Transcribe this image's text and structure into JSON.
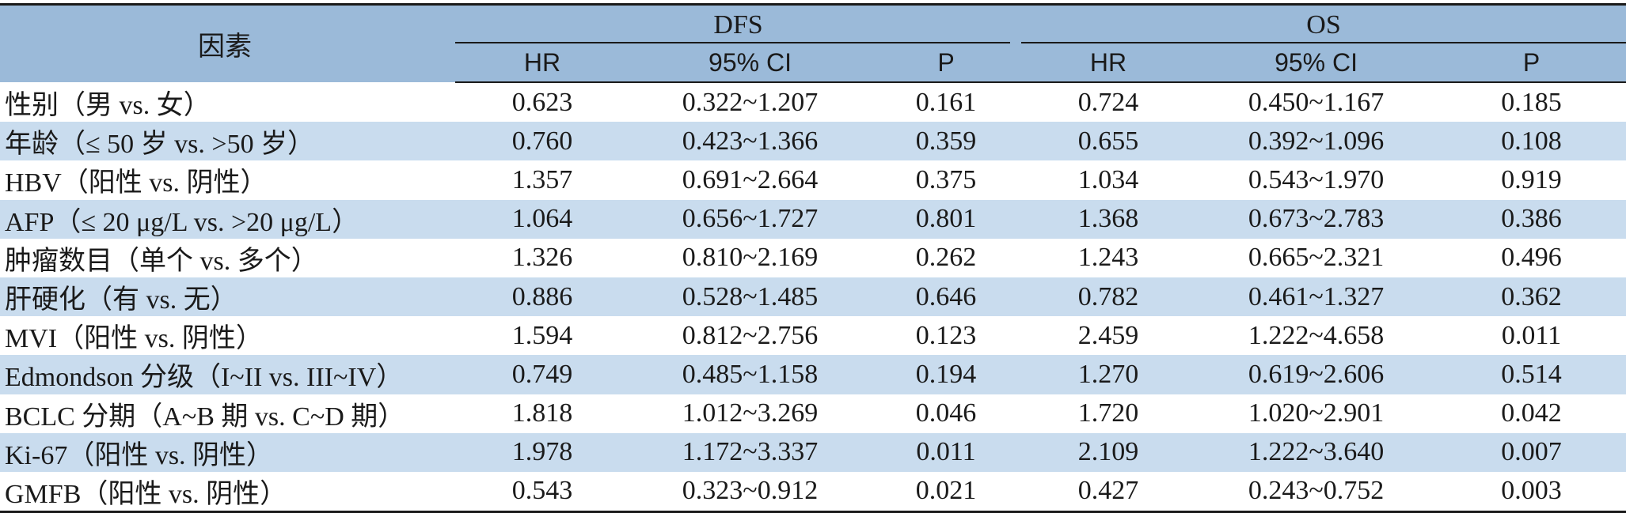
{
  "table": {
    "factor_header": "因素",
    "groups": [
      {
        "title": "DFS",
        "columns": [
          "HR",
          "95% CI",
          "P"
        ]
      },
      {
        "title": "OS",
        "columns": [
          "HR",
          "95% CI",
          "P"
        ]
      }
    ],
    "rows": [
      {
        "factor": "性别（男 vs. 女）",
        "dfs_hr": "0.623",
        "dfs_ci": "0.322~1.207",
        "dfs_p": "0.161",
        "os_hr": "0.724",
        "os_ci": "0.450~1.167",
        "os_p": "0.185"
      },
      {
        "factor": "年龄（≤ 50 岁 vs. >50 岁）",
        "dfs_hr": "0.760",
        "dfs_ci": "0.423~1.366",
        "dfs_p": "0.359",
        "os_hr": "0.655",
        "os_ci": "0.392~1.096",
        "os_p": "0.108"
      },
      {
        "factor": "HBV（阳性 vs. 阴性）",
        "dfs_hr": "1.357",
        "dfs_ci": "0.691~2.664",
        "dfs_p": "0.375",
        "os_hr": "1.034",
        "os_ci": "0.543~1.970",
        "os_p": "0.919"
      },
      {
        "factor": "AFP（≤ 20 μg/L vs. >20 μg/L）",
        "dfs_hr": "1.064",
        "dfs_ci": "0.656~1.727",
        "dfs_p": "0.801",
        "os_hr": "1.368",
        "os_ci": "0.673~2.783",
        "os_p": "0.386"
      },
      {
        "factor": "肿瘤数目（单个 vs. 多个）",
        "dfs_hr": "1.326",
        "dfs_ci": "0.810~2.169",
        "dfs_p": "0.262",
        "os_hr": "1.243",
        "os_ci": "0.665~2.321",
        "os_p": "0.496"
      },
      {
        "factor": "肝硬化（有 vs. 无）",
        "dfs_hr": "0.886",
        "dfs_ci": "0.528~1.485",
        "dfs_p": "0.646",
        "os_hr": "0.782",
        "os_ci": "0.461~1.327",
        "os_p": "0.362"
      },
      {
        "factor": "MVI（阳性 vs. 阴性）",
        "dfs_hr": "1.594",
        "dfs_ci": "0.812~2.756",
        "dfs_p": "0.123",
        "os_hr": "2.459",
        "os_ci": "1.222~4.658",
        "os_p": "0.011"
      },
      {
        "factor": "Edmondson 分级（I~II vs. III~IV）",
        "dfs_hr": "0.749",
        "dfs_ci": "0.485~1.158",
        "dfs_p": "0.194",
        "os_hr": "1.270",
        "os_ci": "0.619~2.606",
        "os_p": "0.514"
      },
      {
        "factor": "BCLC 分期（A~B 期 vs. C~D 期）",
        "dfs_hr": "1.818",
        "dfs_ci": "1.012~3.269",
        "dfs_p": "0.046",
        "os_hr": "1.720",
        "os_ci": "1.020~2.901",
        "os_p": "0.042"
      },
      {
        "factor": "Ki-67（阳性 vs. 阴性）",
        "dfs_hr": "1.978",
        "dfs_ci": "1.172~3.337",
        "dfs_p": "0.011",
        "os_hr": "2.109",
        "os_ci": "1.222~3.640",
        "os_p": "0.007"
      },
      {
        "factor": "GMFB（阳性 vs. 阴性）",
        "dfs_hr": "0.543",
        "dfs_ci": "0.323~0.912",
        "dfs_p": "0.021",
        "os_hr": "0.427",
        "os_ci": "0.243~0.752",
        "os_p": "0.003"
      }
    ]
  },
  "colors": {
    "header_bg": "#9bbad9",
    "stripe_bg": "#c9dcee",
    "rule": "#1a1a1a"
  }
}
